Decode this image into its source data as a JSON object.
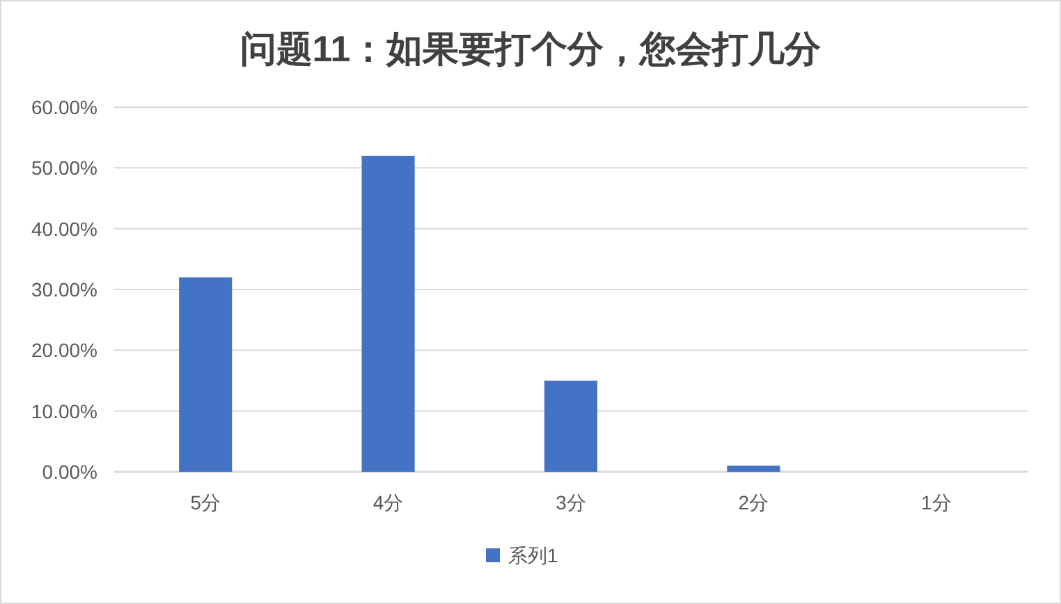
{
  "chart_data": {
    "type": "bar",
    "title": "问题11：如果要打个分，您会打几分",
    "categories": [
      "5分",
      "4分",
      "3分",
      "2分",
      "1分"
    ],
    "series": [
      {
        "name": "系列1",
        "color": "#4472c4",
        "values": [
          32,
          52,
          15,
          1,
          0
        ]
      }
    ],
    "ylim": [
      0,
      60
    ],
    "yticks": [
      {
        "value": 0,
        "label": "0.00%"
      },
      {
        "value": 10,
        "label": "10.00%"
      },
      {
        "value": 20,
        "label": "20.00%"
      },
      {
        "value": 30,
        "label": "30.00%"
      },
      {
        "value": 40,
        "label": "40.00%"
      },
      {
        "value": 50,
        "label": "50.00%"
      },
      {
        "value": 60,
        "label": "60.00%"
      }
    ],
    "grid": "y",
    "legend": "bottom"
  }
}
